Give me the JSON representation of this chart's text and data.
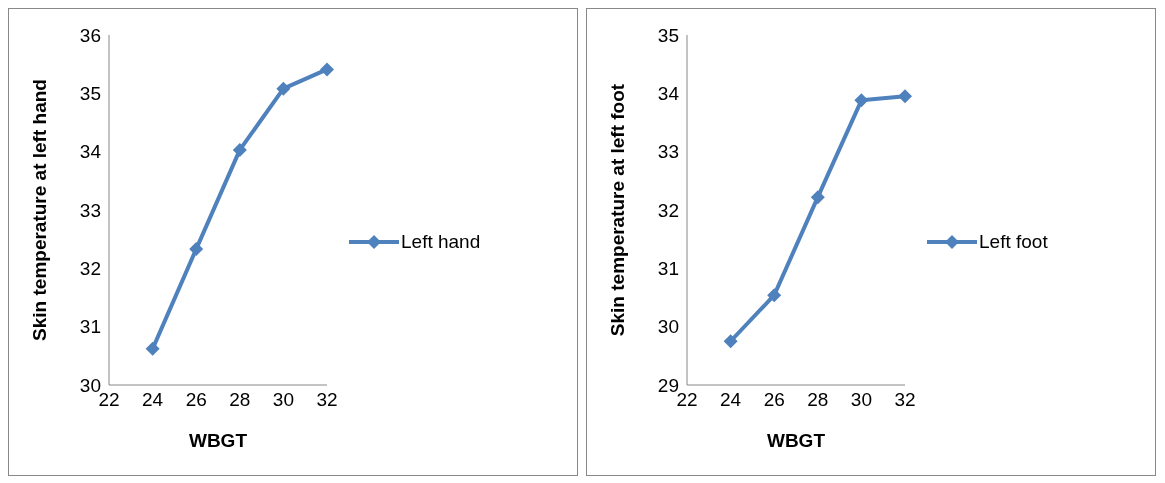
{
  "chart_data": [
    {
      "type": "line",
      "xlabel": "WBGT",
      "ylabel": "Skin temperature at left hand",
      "x": [
        24,
        26,
        28,
        30,
        32
      ],
      "series": [
        {
          "name": "Left hand",
          "color": "#4f81bd",
          "values": [
            30.62,
            32.33,
            34.03,
            35.08,
            35.41
          ]
        }
      ],
      "xlim": [
        22,
        32
      ],
      "xticks": [
        22,
        24,
        26,
        28,
        30,
        32
      ],
      "ylim": [
        30,
        36
      ],
      "yticks": [
        30,
        31,
        32,
        33,
        34,
        35,
        36
      ],
      "grid": false,
      "legend": "right",
      "marker": "diamond",
      "line_style": "solid"
    },
    {
      "type": "line",
      "xlabel": "WBGT",
      "ylabel": "Skin temperature at left foot",
      "x": [
        24,
        26,
        28,
        30,
        32
      ],
      "series": [
        {
          "name": "Left foot",
          "color": "#4f81bd",
          "values": [
            29.75,
            30.54,
            32.22,
            33.88,
            33.95
          ]
        }
      ],
      "xlim": [
        22,
        32
      ],
      "xticks": [
        22,
        24,
        26,
        28,
        30,
        32
      ],
      "ylim": [
        29,
        35
      ],
      "yticks": [
        29,
        30,
        31,
        32,
        33,
        34,
        35
      ],
      "grid": false,
      "legend": "right",
      "marker": "diamond",
      "line_style": "solid"
    }
  ]
}
